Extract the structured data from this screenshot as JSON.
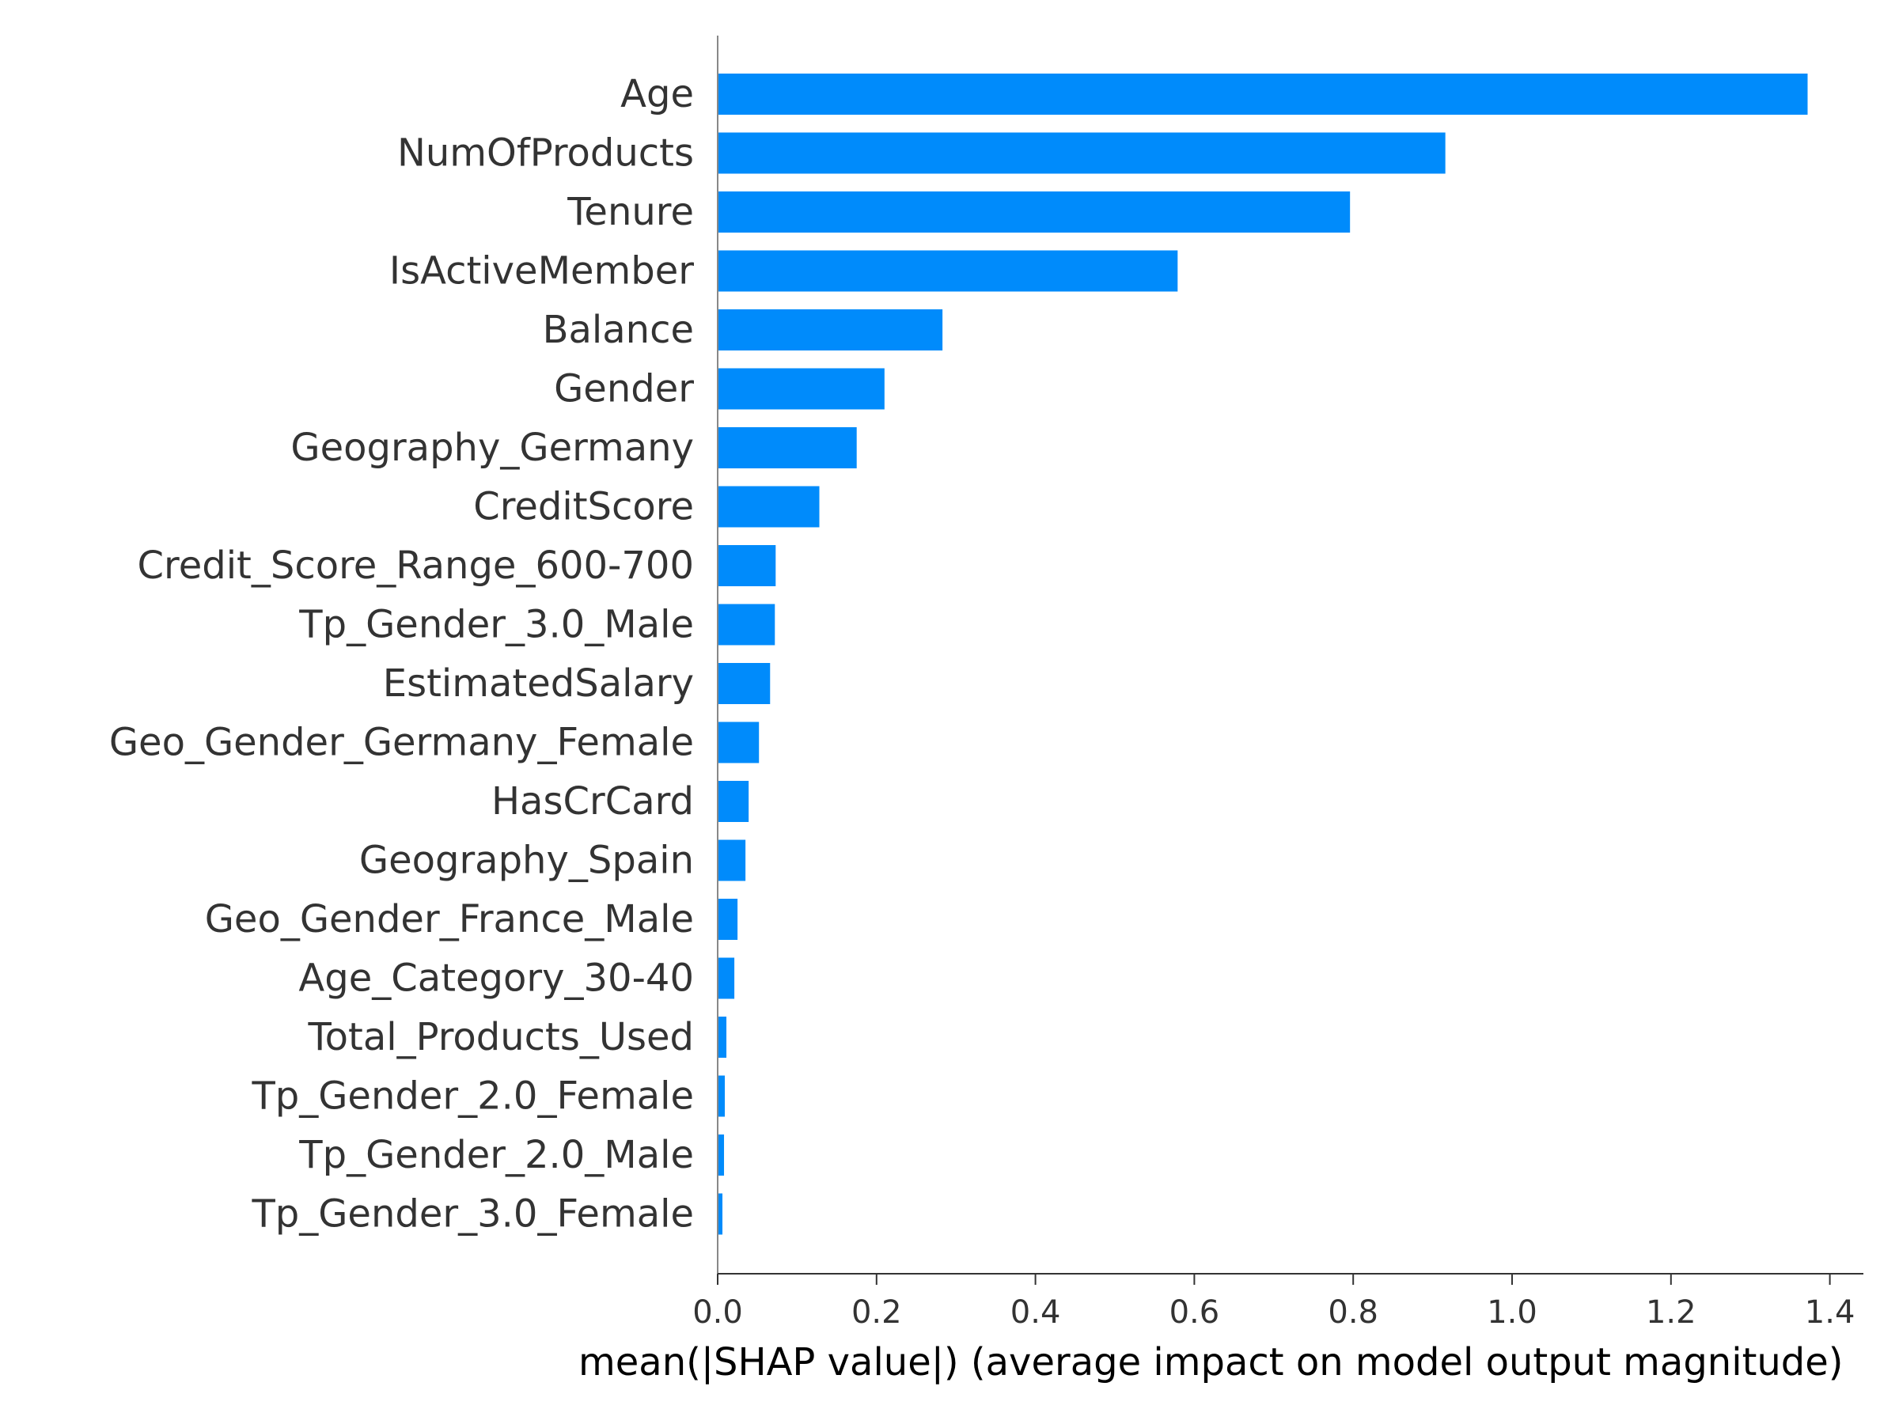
{
  "chart_data": {
    "type": "bar",
    "orientation": "horizontal",
    "title": "",
    "xlabel": "mean(|SHAP value|) (average impact on model output magnitude)",
    "ylabel": "",
    "xlim": [
      0,
      1.4
    ],
    "xticks": [
      "0.0",
      "0.2",
      "0.4",
      "0.6",
      "0.8",
      "1.0",
      "1.2",
      "1.4"
    ],
    "grid": false,
    "bar_color": "#008bfb",
    "categories": [
      "Age",
      "NumOfProducts",
      "Tenure",
      "IsActiveMember",
      "Balance",
      "Gender",
      "Geography_Germany",
      "CreditScore",
      "Credit_Score_Range_600-700",
      "Tp_Gender_3.0_Male",
      "EstimatedSalary",
      "Geo_Gender_Germany_Female",
      "HasCrCard",
      "Geography_Spain",
      "Geo_Gender_France_Male",
      "Age_Category_30-40",
      "Total_Products_Used",
      "Tp_Gender_2.0_Female",
      "Tp_Gender_2.0_Male",
      "Tp_Gender_3.0_Female"
    ],
    "values": [
      1.372,
      0.916,
      0.796,
      0.579,
      0.283,
      0.21,
      0.175,
      0.128,
      0.073,
      0.072,
      0.066,
      0.052,
      0.039,
      0.035,
      0.025,
      0.021,
      0.011,
      0.009,
      0.008,
      0.006
    ]
  }
}
